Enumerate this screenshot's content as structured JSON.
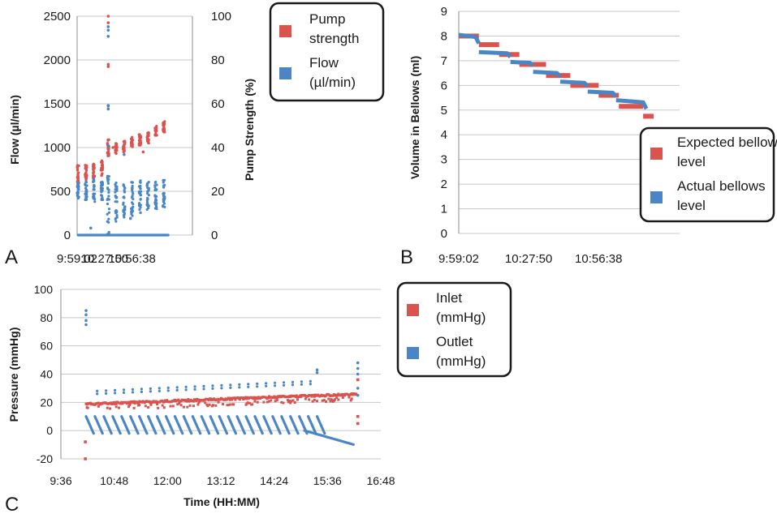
{
  "colors": {
    "red": "#d9534f",
    "blue": "#4a86c5",
    "grid": "#c8c8c8",
    "axis": "#8c8c8c"
  },
  "chart_data": [
    {
      "panel": "A",
      "type": "scatter",
      "ylabel": "Flow (µl/min)",
      "y2label": "Pump Strength (%)",
      "ylim": [
        0,
        2500
      ],
      "yticks": [
        0,
        500,
        1000,
        1500,
        2000,
        2500
      ],
      "y2lim": [
        0,
        100
      ],
      "y2ticks": [
        0,
        20,
        40,
        60,
        80,
        100
      ],
      "xlim": [
        35942,
        43200
      ],
      "xticks": [
        "9:59:02",
        "10:27:50",
        "10:56:38"
      ],
      "xtick_values": [
        35942,
        37670,
        39398
      ],
      "legend": [
        "Pump strength",
        "Flow (µl/min)"
      ],
      "series": [
        {
          "name": "Pump strength",
          "axis": "right",
          "color": "red",
          "clusters": [
            {
              "x": 36000,
              "ymin": 22,
              "ymax": 32
            },
            {
              "x": 36500,
              "ymin": 25,
              "ymax": 32
            },
            {
              "x": 37000,
              "ymin": 26,
              "ymax": 33
            },
            {
              "x": 37500,
              "ymin": 27,
              "ymax": 34
            },
            {
              "x": 37900,
              "ymin": 36,
              "ymax": 44
            },
            {
              "x": 38400,
              "ymin": 37,
              "ymax": 42
            },
            {
              "x": 38900,
              "ymin": 38,
              "ymax": 43
            },
            {
              "x": 39400,
              "ymin": 40,
              "ymax": 45
            },
            {
              "x": 39900,
              "ymin": 41,
              "ymax": 46
            },
            {
              "x": 40400,
              "ymin": 42,
              "ymax": 47
            },
            {
              "x": 40900,
              "ymin": 45,
              "ymax": 50
            },
            {
              "x": 41400,
              "ymin": 47,
              "ymax": 52
            }
          ],
          "outliers": [
            {
              "x": 37900,
              "y": 100
            },
            {
              "x": 37900,
              "y": 97
            },
            {
              "x": 37900,
              "y": 78
            },
            {
              "x": 37900,
              "y": 77
            },
            {
              "x": 37900,
              "y": 59
            },
            {
              "x": 38200,
              "y": 40
            },
            {
              "x": 40100,
              "y": 38
            }
          ]
        },
        {
          "name": "Flow (µl/min)",
          "axis": "left",
          "color": "blue",
          "clusters": [
            {
              "x": 36000,
              "ymin": 420,
              "ymax": 600
            },
            {
              "x": 36500,
              "ymin": 400,
              "ymax": 620
            },
            {
              "x": 37000,
              "ymin": 380,
              "ymax": 640
            },
            {
              "x": 37500,
              "ymin": 400,
              "ymax": 620
            },
            {
              "x": 37900,
              "ymin": 0,
              "ymax": 700
            },
            {
              "x": 38400,
              "ymin": 150,
              "ymax": 650
            },
            {
              "x": 38900,
              "ymin": 200,
              "ymax": 640
            },
            {
              "x": 39400,
              "ymin": 220,
              "ymax": 630
            },
            {
              "x": 39900,
              "ymin": 250,
              "ymax": 630
            },
            {
              "x": 40400,
              "ymin": 280,
              "ymax": 620
            },
            {
              "x": 40900,
              "ymin": 300,
              "ymax": 620
            },
            {
              "x": 41400,
              "ymin": 320,
              "ymax": 630
            }
          ],
          "baseline": 0,
          "outliers": [
            {
              "x": 37900,
              "y": 2380
            },
            {
              "x": 37900,
              "y": 2340
            },
            {
              "x": 37900,
              "y": 2270
            },
            {
              "x": 37900,
              "y": 1480
            },
            {
              "x": 37900,
              "y": 1440
            },
            {
              "x": 37900,
              "y": 1020
            },
            {
              "x": 38900,
              "y": 920
            },
            {
              "x": 39300,
              "y": 190
            },
            {
              "x": 36800,
              "y": 80
            }
          ]
        }
      ]
    },
    {
      "panel": "B",
      "type": "scatter",
      "ylabel": "Volume in Bellows (ml)",
      "ylim": [
        0,
        9
      ],
      "yticks": [
        0,
        1,
        2,
        3,
        4,
        5,
        6,
        7,
        8,
        9
      ],
      "xlim": [
        35942,
        41400
      ],
      "xticks": [
        "9:59:02",
        "10:27:50",
        "10:56:38"
      ],
      "xtick_values": [
        35942,
        37670,
        39398
      ],
      "legend": [
        "Expected bellows level",
        "Actual bellows level"
      ],
      "series": [
        {
          "name": "Expected bellows level",
          "color": "red",
          "steps": [
            {
              "x0": 35942,
              "x1": 36440,
              "y": 8.0
            },
            {
              "x0": 36440,
              "x1": 36940,
              "y": 7.65
            },
            {
              "x0": 36940,
              "x1": 37440,
              "y": 7.25
            },
            {
              "x0": 37440,
              "x1": 38100,
              "y": 6.85
            },
            {
              "x0": 38100,
              "x1": 38700,
              "y": 6.4
            },
            {
              "x0": 38700,
              "x1": 39400,
              "y": 6.0
            },
            {
              "x0": 39400,
              "x1": 39900,
              "y": 5.6
            },
            {
              "x0": 39900,
              "x1": 40500,
              "y": 5.15
            },
            {
              "x0": 40500,
              "x1": 40760,
              "y": 4.75
            }
          ]
        },
        {
          "name": "Actual bellows level",
          "color": "blue",
          "steps": [
            {
              "x0": 35942,
              "x1": 36440,
              "y": 8.05,
              "tail": 7.7
            },
            {
              "x0": 36440,
              "x1": 37220,
              "y": 7.35,
              "tail": 7.15
            },
            {
              "x0": 37220,
              "x1": 37780,
              "y": 6.95,
              "tail": 6.8
            },
            {
              "x0": 37780,
              "x1": 38450,
              "y": 6.55,
              "tail": 6.35
            },
            {
              "x0": 38450,
              "x1": 39130,
              "y": 6.15,
              "tail": 5.95
            },
            {
              "x0": 39130,
              "x1": 39830,
              "y": 5.75,
              "tail": 5.55
            },
            {
              "x0": 39830,
              "x1": 40580,
              "y": 5.4,
              "tail": 5.05
            }
          ]
        }
      ]
    },
    {
      "panel": "C",
      "type": "scatter",
      "xlabel": "Time (HH:MM)",
      "ylabel": "Pressure (mmHg)",
      "ylim": [
        -20,
        100
      ],
      "yticks": [
        -20,
        0,
        20,
        40,
        60,
        80,
        100
      ],
      "xlim": [
        "9:36",
        "16:48"
      ],
      "xticks": [
        "9:36",
        "10:48",
        "12:00",
        "13:12",
        "14:24",
        "15:36",
        "16:48"
      ],
      "legend": [
        "Inlet (mmHg)",
        "Outlet (mmHg)"
      ],
      "series": [
        {
          "name": "Inlet (mmHg)",
          "color": "red",
          "band": {
            "x0": "10:10",
            "x1": "16:15",
            "y0": 17,
            "y1": 24,
            "ymin_offset": -3
          },
          "outliers": [
            {
              "x": "10:09",
              "y": -8
            },
            {
              "x": "10:09",
              "y": -20
            },
            {
              "x": "16:17",
              "y": 36
            },
            {
              "x": "16:17",
              "y": 10
            },
            {
              "x": "16:17",
              "y": 5
            }
          ]
        },
        {
          "name": "Outlet (mmHg)",
          "color": "blue",
          "sawtooth": {
            "x0": "10:10",
            "x1": "15:30",
            "period_min": 12,
            "y_top": 10,
            "y_bottom": -2
          },
          "upper": {
            "x0": "10:25",
            "x1": "15:15",
            "y0": 28,
            "y1": 35,
            "period_min": 12
          },
          "decline": {
            "x0": "15:05",
            "x1": "16:12",
            "y0": 0,
            "y1": -10
          },
          "outliers": [
            {
              "x": "10:10",
              "y": 85
            },
            {
              "x": "10:10",
              "y": 82
            },
            {
              "x": "10:10",
              "y": 78
            },
            {
              "x": "10:10",
              "y": 75
            },
            {
              "x": "16:17",
              "y": 48
            },
            {
              "x": "16:17",
              "y": 44
            },
            {
              "x": "16:17",
              "y": 40
            },
            {
              "x": "16:17",
              "y": 30
            },
            {
              "x": "16:17",
              "y": 25
            },
            {
              "x": "15:22",
              "y": 43
            },
            {
              "x": "15:22",
              "y": 41
            }
          ]
        }
      ]
    }
  ]
}
